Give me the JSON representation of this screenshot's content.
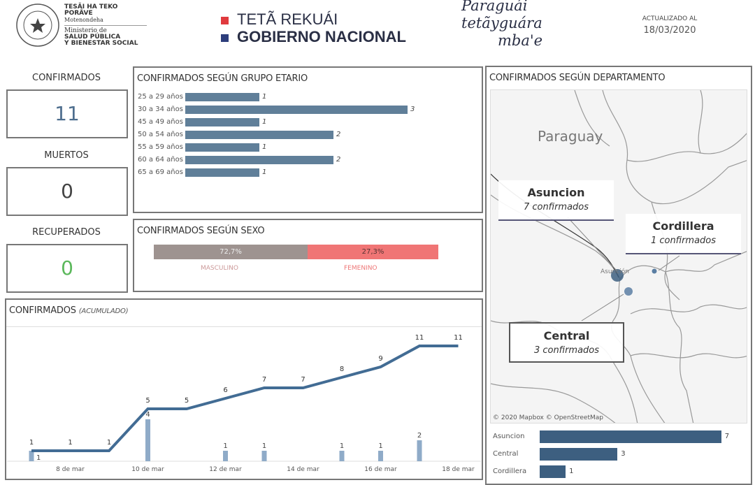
{
  "header": {
    "ministry_logo": {
      "line1": "TESÃI HA TEKO",
      "line2": "PORÃVE",
      "line3": "Motenondeha",
      "line4": "Ministerio de",
      "line5": "SALUD PÚBLICA",
      "line6": "Y BIENESTAR SOCIAL",
      "seal_text": "REPÚBLICA DEL PARAGUAY"
    },
    "gov_logo": {
      "line1": "TETÃ REKUÁI",
      "line2": "GOBIERNO NACIONAL",
      "color1": "#e03a3e",
      "color2": "#2d3e7c"
    },
    "slogan": {
      "line1": "Paraguái",
      "line2": "tetãyguára",
      "line3": "mba'e"
    },
    "updated_label": "ACTUALIZADO AL",
    "updated_date": "18/03/2020"
  },
  "kpis": [
    {
      "label": "CONFIRMADOS",
      "value": "11",
      "color": "#4e6e8e"
    },
    {
      "label": "MUERTOS",
      "value": "0",
      "color": "#444444"
    },
    {
      "label": "RECUPERADOS",
      "value": "0",
      "color": "#5cb85c"
    }
  ],
  "age": {
    "title": "CONFIRMADOS SEGÚN GRUPO ETARIO",
    "chart_data": {
      "type": "bar",
      "orientation": "horizontal",
      "categories": [
        "25 a 29 años",
        "30 a 34 años",
        "45 a 49 años",
        "50 a 54 años",
        "55 a 59 años",
        "60 a 64 años",
        "65 a 69 años"
      ],
      "values": [
        1,
        3,
        1,
        2,
        1,
        2,
        1
      ],
      "color": "#607f99"
    }
  },
  "sex": {
    "title": "CONFIRMADOS SEGÚN SEXO",
    "chart_data": {
      "type": "bar",
      "orientation": "stacked-100",
      "categories": [
        "MASCULINO",
        "FEMENINO"
      ],
      "values": [
        72.7,
        27.3
      ],
      "labels": [
        "72,7%",
        "27,3%"
      ],
      "colors": [
        "#9e9390",
        "#f07575"
      ]
    }
  },
  "timeline": {
    "title": "CONFIRMADOS",
    "subtitle": "(ACUMULADO)",
    "chart_data": {
      "type": "line",
      "x": [
        "7 mar",
        "8 mar",
        "9 mar",
        "10 mar",
        "11 mar",
        "12 mar",
        "13 mar",
        "14 mar",
        "15 mar",
        "16 mar",
        "17 mar",
        "18 mar"
      ],
      "series": [
        {
          "type": "line",
          "values": [
            1,
            1,
            1,
            5,
            5,
            6,
            7,
            7,
            8,
            9,
            11,
            11
          ],
          "color": "#426c94"
        },
        {
          "type": "bar",
          "values": [
            1,
            0,
            0,
            4,
            0,
            1,
            1,
            0,
            1,
            1,
            2,
            0
          ],
          "color": "#8fabc8"
        }
      ],
      "x_tick_labels": [
        "8 de mar",
        "10 de mar",
        "12 de mar",
        "14 de mar",
        "16 de mar",
        "18 de mar"
      ]
    }
  },
  "dept": {
    "title": "CONFIRMADOS SEGÚN DEPARTAMENTO",
    "map": {
      "country_label": "Paraguay",
      "city_label": "Asunción",
      "attribution": "© 2020 Mapbox © OpenStreetMap",
      "callouts": [
        {
          "name": "Asuncion",
          "text": "7 confirmados"
        },
        {
          "name": "Cordillera",
          "text": "1 confirmados"
        },
        {
          "name": "Central",
          "text": "3 confirmados"
        }
      ]
    },
    "chart_data": {
      "type": "bar",
      "orientation": "horizontal",
      "categories": [
        "Asuncion",
        "Central",
        "Cordillera"
      ],
      "values": [
        7,
        3,
        1
      ],
      "color": "#3d5f80"
    }
  }
}
